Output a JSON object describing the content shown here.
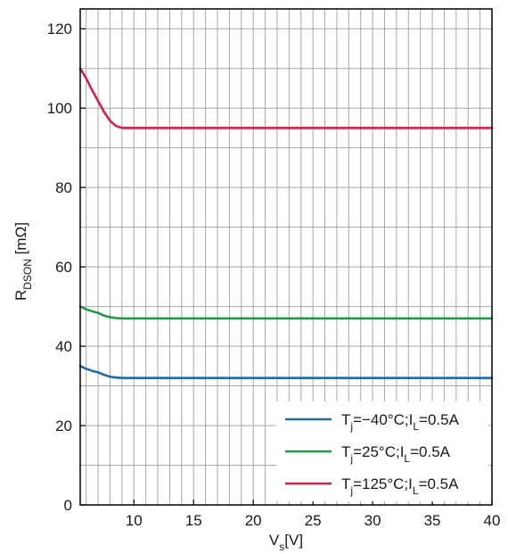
{
  "chart_data": {
    "type": "line",
    "xlim": [
      5.5,
      40
    ],
    "ylim": [
      0,
      125
    ],
    "xticks": [
      10,
      15,
      20,
      25,
      30,
      35,
      40
    ],
    "yticks": [
      0,
      20,
      40,
      60,
      80,
      100,
      120
    ],
    "xlabel": {
      "main": "V",
      "sub": "s",
      "unit": "[V]"
    },
    "ylabel": {
      "main": "R",
      "sub": "DSON",
      "unit": " [mΩ]"
    },
    "grid": true,
    "grid_minor_x": 1,
    "legend_position": "bottom-right",
    "series": [
      {
        "name": "Tj=−40°C;IL=0.5A",
        "legend": {
          "p1": "T",
          "s1": "j",
          "p2": "=−40°C;I",
          "s2": "L",
          "p3": "=0.5A"
        },
        "color": "#1f6bb0",
        "x": [
          5.5,
          6,
          6.5,
          7,
          7.5,
          8,
          8.5,
          9,
          10,
          15,
          20,
          25,
          30,
          35,
          40
        ],
        "y": [
          35,
          34.3,
          33.8,
          33.4,
          32.8,
          32.3,
          32.1,
          32,
          32,
          32,
          32,
          32,
          32,
          32,
          32
        ]
      },
      {
        "name": "Tj=25°C;IL=0.5A",
        "legend": {
          "p1": "T",
          "s1": "j",
          "p2": "=25°C;I",
          "s2": "L",
          "p3": "=0.5A"
        },
        "color": "#1e9a48",
        "x": [
          5.5,
          6,
          6.5,
          7,
          7.5,
          8,
          8.5,
          9,
          10,
          15,
          20,
          25,
          30,
          35,
          40
        ],
        "y": [
          50,
          49.3,
          48.8,
          48.4,
          47.7,
          47.3,
          47.1,
          47,
          47,
          47,
          47,
          47,
          47,
          47,
          47
        ]
      },
      {
        "name": "Tj=125°C;IL=0.5A",
        "legend": {
          "p1": "T",
          "s1": "j",
          "p2": "=125°C;I",
          "s2": "L",
          "p3": "=0.5A"
        },
        "color": "#d81e4a",
        "x": [
          5.5,
          6,
          6.5,
          7,
          7.5,
          8,
          8.5,
          9,
          10,
          15,
          20,
          25,
          30,
          35,
          40
        ],
        "y": [
          110,
          107.5,
          104.5,
          101.8,
          99,
          96.8,
          95.5,
          95,
          95,
          95,
          95,
          95,
          95,
          95,
          95
        ]
      }
    ]
  }
}
